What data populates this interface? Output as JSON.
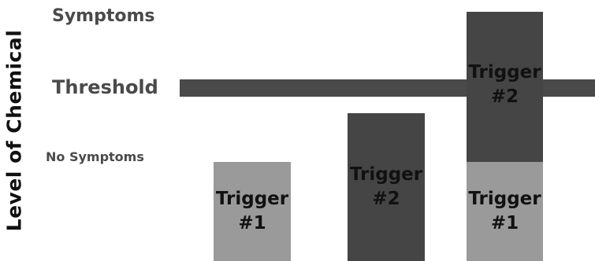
{
  "diagram": {
    "y_axis_title": "Level of Chemical",
    "levels": {
      "symptoms": "Symptoms",
      "threshold": "Threshold",
      "no_symptoms": "No Symptoms"
    },
    "bars": {
      "first": {
        "line1": "Trigger",
        "line2": "#1"
      },
      "second": {
        "line1": "Trigger",
        "line2": "#2"
      },
      "third_bottom": {
        "line1": "Trigger",
        "line2": "#1"
      },
      "third_top": {
        "line1": "Trigger",
        "line2": "#2"
      }
    },
    "colors": {
      "trigger_1": "#9a9a9a",
      "trigger_2": "#454545",
      "threshold_line": "#4a4a4a",
      "text_dark": "#111111",
      "text_level": "#4a4a4a"
    }
  }
}
